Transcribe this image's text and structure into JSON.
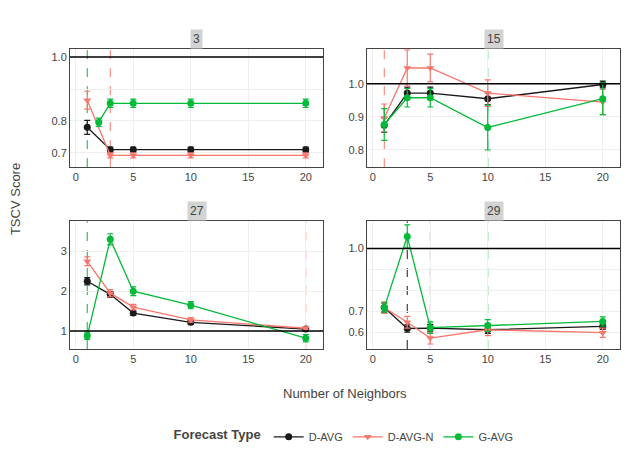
{
  "chart_data": {
    "type": "line",
    "x_label": "Number of Neighbors",
    "y_label": "TSCV Score",
    "legend_title": "Forecast Type",
    "legend": "bottom",
    "grid": true,
    "facets": [
      {
        "title": "3",
        "xlim": [
          -0.5,
          21.5
        ],
        "ylim": [
          0.655,
          1.025
        ],
        "xticks": [
          0,
          5,
          10,
          15,
          20
        ],
        "yticks": [
          0.7,
          0.8,
          {
            "value": 0.9,
            "label": null
          },
          {
            "value": 1.0,
            "label": "1.0"
          }
        ],
        "hline": {
          "y": 1.0,
          "color": "#000000"
        },
        "vlines": [
          {
            "x": 3,
            "color": "#F8766D",
            "line_style": "dash"
          },
          {
            "x": 1,
            "color": "#00BA38",
            "line_style": "dash"
          }
        ],
        "series": [
          {
            "name": "D-AVG",
            "color": "#1a1a1a",
            "marker": "circle",
            "x": [
              1,
              3,
              5,
              10,
              20
            ],
            "values": [
              0.78,
              0.71,
              0.71,
              0.71,
              0.71
            ],
            "error": [
              0.022,
              0.008,
              0.008,
              0.008,
              0.008
            ]
          },
          {
            "name": "D-AVG-N",
            "color": "#F8766D",
            "marker": "triangle-down",
            "x": [
              1,
              3,
              5,
              10,
              20
            ],
            "values": [
              0.865,
              0.692,
              0.692,
              0.692,
              0.692
            ],
            "error": [
              0.028,
              0.008,
              0.008,
              0.008,
              0.008
            ]
          },
          {
            "name": "G-AVG",
            "color": "#00BA38",
            "marker": "circle",
            "x": [
              2,
              3,
              5,
              10,
              20
            ],
            "values": [
              0.796,
              0.855,
              0.855,
              0.855,
              0.855
            ],
            "error": [
              0.013,
              0.013,
              0.013,
              0.013,
              0.013
            ]
          }
        ]
      },
      {
        "title": "15",
        "xlim": [
          -0.5,
          21.5
        ],
        "ylim": [
          0.748,
          1.105
        ],
        "xticks": [
          0,
          5,
          10,
          15,
          20
        ],
        "yticks": [
          0.8,
          0.9,
          {
            "value": 1.0,
            "label": "1.0"
          }
        ],
        "hline": {
          "y": 1.0,
          "color": "#000000"
        },
        "vlines": [
          {
            "x": 1,
            "color": "#F8766D",
            "line_style": "dash"
          },
          {
            "x": 10,
            "color": "#00BA38",
            "line_style": "dash"
          }
        ],
        "series": [
          {
            "name": "D-AVG",
            "color": "#1a1a1a",
            "marker": "circle",
            "x": [
              1,
              3,
              5,
              10,
              20
            ],
            "values": [
              0.875,
              0.972,
              0.972,
              0.955,
              0.998
            ],
            "error": [
              0.022,
              0.018,
              0.018,
              0.018,
              0.01
            ]
          },
          {
            "name": "D-AVG-N",
            "color": "#F8766D",
            "marker": "triangle-down",
            "x": [
              1,
              3,
              5,
              10,
              20
            ],
            "values": [
              0.897,
              1.048,
              1.048,
              0.972,
              0.945
            ],
            "error": [
              0.042,
              0.055,
              0.042,
              0.04,
              0.038
            ]
          },
          {
            "name": "G-AVG",
            "color": "#00BA38",
            "marker": "circle",
            "x": [
              1,
              3,
              5,
              10,
              20
            ],
            "values": [
              0.877,
              0.958,
              0.958,
              0.868,
              0.955
            ],
            "error": [
              0.048,
              0.028,
              0.028,
              0.068,
              0.048
            ]
          }
        ]
      },
      {
        "title": "27",
        "xlim": [
          -0.5,
          21.5
        ],
        "ylim": [
          0.55,
          3.75
        ],
        "xticks": [
          0,
          5,
          10,
          15,
          20
        ],
        "yticks": [
          1,
          2,
          3
        ],
        "hline": {
          "y": 1.0,
          "color": "#000000"
        },
        "vlines": [
          {
            "x": 20,
            "color": "#F8766D",
            "line_style": "dash"
          },
          {
            "x": 1,
            "color": "#00BA38",
            "line_style": "dash"
          }
        ],
        "series": [
          {
            "name": "D-AVG",
            "color": "#1a1a1a",
            "marker": "circle",
            "x": [
              1,
              3,
              5,
              10,
              20
            ],
            "values": [
              2.25,
              1.92,
              1.45,
              1.22,
              1.05
            ],
            "error": [
              0.09,
              0.07,
              0.06,
              0.05,
              0.035
            ]
          },
          {
            "name": "D-AVG-N",
            "color": "#F8766D",
            "marker": "triangle-down",
            "x": [
              1,
              3,
              5,
              10,
              20
            ],
            "values": [
              2.75,
              1.95,
              1.6,
              1.28,
              1.07
            ],
            "error": [
              0.11,
              0.09,
              0.07,
              0.055,
              0.038
            ]
          },
          {
            "name": "G-AVG",
            "color": "#00BA38",
            "marker": "circle",
            "x": [
              1,
              3,
              5,
              10,
              20
            ],
            "values": [
              0.88,
              3.3,
              2.0,
              1.65,
              0.82
            ],
            "error": [
              0.09,
              0.14,
              0.11,
              0.09,
              0.09
            ]
          }
        ]
      },
      {
        "title": "29",
        "xlim": [
          -0.5,
          21.5
        ],
        "ylim": [
          0.52,
          1.13
        ],
        "xticks": [
          0,
          5,
          10,
          15,
          20
        ],
        "yticks": [
          0.6,
          0.7,
          {
            "value": 0.8,
            "label": null
          },
          {
            "value": 0.9,
            "label": null
          },
          {
            "value": 1.0,
            "label": "1.0"
          }
        ],
        "hline": {
          "y": 1.0,
          "color": "#000000"
        },
        "vlines": [
          {
            "x": 3,
            "color": "#1a1a1a",
            "line_style": "dash"
          },
          {
            "x": 5,
            "color": "#F8766D",
            "line_style": "dash"
          },
          {
            "x": 10,
            "color": "#00BA38",
            "line_style": "dash"
          }
        ],
        "series": [
          {
            "name": "D-AVG",
            "color": "#1a1a1a",
            "marker": "circle",
            "x": [
              1,
              3,
              5,
              10,
              20
            ],
            "values": [
              0.718,
              0.618,
              0.62,
              0.612,
              0.628
            ],
            "error": [
              0.022,
              0.018,
              0.018,
              0.018,
              0.013
            ]
          },
          {
            "name": "D-AVG-N",
            "color": "#F8766D",
            "marker": "triangle-down",
            "x": [
              1,
              3,
              5,
              10,
              20
            ],
            "values": [
              0.718,
              0.648,
              0.572,
              0.612,
              0.598
            ],
            "error": [
              0.028,
              0.028,
              0.028,
              0.028,
              0.022
            ]
          },
          {
            "name": "G-AVG",
            "color": "#00BA38",
            "marker": "circle",
            "x": [
              1,
              3,
              5,
              10,
              20
            ],
            "values": [
              0.718,
              1.058,
              0.622,
              0.632,
              0.652
            ],
            "error": [
              0.022,
              0.055,
              0.028,
              0.028,
              0.022
            ]
          }
        ]
      }
    ]
  }
}
